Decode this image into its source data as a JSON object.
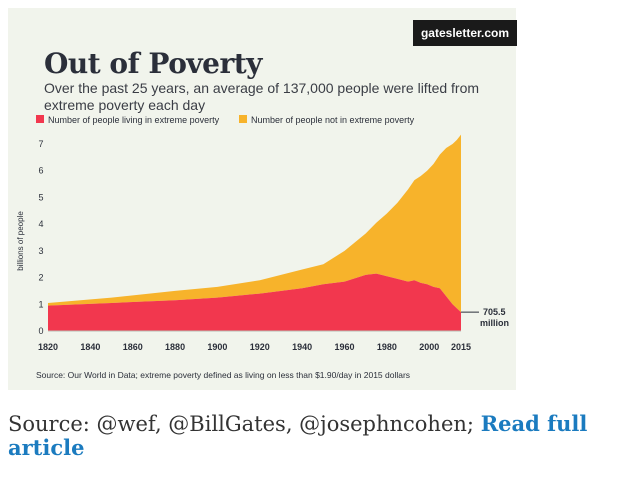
{
  "brand": "gatesletter.com",
  "title": "Out of Poverty",
  "subtitle": "Over the past 25 years, an average of 137,000 people were lifted from extreme poverty each day",
  "source_note": "Source: Our World in Data; extreme poverty defined as living on less than $1.90/day in 2015 dollars",
  "caption": {
    "text": "Source: @wef, @BillGates, @josephncohen;",
    "link_label": "Read full article"
  },
  "colors": {
    "extreme": "#f2374e",
    "not_extreme": "#f7b32b",
    "background": "#f1f4ec",
    "axis_text": "#2b2f3a",
    "link": "#1b7bbf"
  },
  "chart_data": {
    "type": "area",
    "stacked": true,
    "title": "Out of Poverty",
    "xlabel": "",
    "ylabel": "billions of people",
    "xlim": [
      1820,
      2015
    ],
    "ylim": [
      0,
      7
    ],
    "xticks": [
      1820,
      1840,
      1860,
      1880,
      1900,
      1920,
      1940,
      1960,
      1980,
      2000,
      2015
    ],
    "yticks": [
      0,
      1,
      2,
      3,
      4,
      5,
      6,
      7
    ],
    "legend_position": "top-left",
    "series": [
      {
        "name": "Number of people living in extreme poverty",
        "color": "#f2374e",
        "x": [
          1820,
          1850,
          1880,
          1900,
          1920,
          1940,
          1950,
          1960,
          1970,
          1975,
          1980,
          1985,
          1990,
          1993,
          1996,
          1999,
          2002,
          2005,
          2008,
          2011,
          2013,
          2015
        ],
        "values": [
          0.95,
          1.05,
          1.15,
          1.25,
          1.4,
          1.6,
          1.75,
          1.85,
          2.1,
          2.15,
          2.05,
          1.95,
          1.85,
          1.9,
          1.8,
          1.75,
          1.65,
          1.6,
          1.3,
          1.0,
          0.85,
          0.7
        ]
      },
      {
        "name": "Number of people not in extreme poverty",
        "color": "#f7b32b",
        "x": [
          1820,
          1850,
          1880,
          1900,
          1920,
          1940,
          1950,
          1960,
          1970,
          1975,
          1980,
          1985,
          1990,
          1993,
          1996,
          1999,
          2002,
          2005,
          2008,
          2011,
          2013,
          2015
        ],
        "values": [
          0.1,
          0.2,
          0.35,
          0.4,
          0.5,
          0.7,
          0.75,
          1.15,
          1.55,
          1.9,
          2.35,
          2.85,
          3.45,
          3.75,
          4.0,
          4.25,
          4.6,
          5.0,
          5.55,
          6.0,
          6.3,
          6.65
        ]
      }
    ],
    "annotations": [
      {
        "x": 2015,
        "y": 0.7055,
        "line1": "705.5",
        "line2": "million"
      }
    ]
  }
}
